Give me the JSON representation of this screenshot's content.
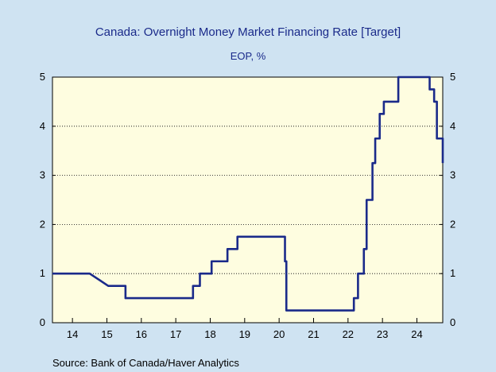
{
  "chart_data": {
    "type": "line",
    "title": "Canada: Overnight Money Market Financing Rate [Target]",
    "subtitle": "EOP, %",
    "source": "Source:  Bank of Canada/Haver Analytics",
    "xlabel": "",
    "ylabel": "",
    "xlim": [
      2013.42,
      2024.75
    ],
    "ylim": [
      0,
      5
    ],
    "y_ticks": [
      0,
      1,
      2,
      3,
      4,
      5
    ],
    "x_tick_labels": [
      "14",
      "15",
      "16",
      "17",
      "18",
      "19",
      "20",
      "21",
      "22",
      "23",
      "24"
    ],
    "x_tick_positions": [
      2014,
      2015,
      2016,
      2017,
      2018,
      2019,
      2020,
      2021,
      2022,
      2023,
      2024
    ],
    "grid": true,
    "line_color": "#1a2a8a",
    "plot_background": "#fefde0",
    "series": [
      {
        "x": [
          2013.42,
          2014.5,
          2015.04,
          2015.04,
          2015.54,
          2015.54,
          2017.5,
          2017.5,
          2017.7,
          2017.7,
          2018.04,
          2018.04,
          2018.5,
          2018.5,
          2018.79,
          2018.79,
          2020.17,
          2020.17,
          2020.21,
          2020.21,
          2022.17,
          2022.17,
          2022.29,
          2022.29,
          2022.46,
          2022.46,
          2022.54,
          2022.54,
          2022.71,
          2022.71,
          2022.79,
          2022.79,
          2022.92,
          2022.92,
          2023.04,
          2023.04,
          2023.46,
          2023.46,
          2024.37,
          2024.37,
          2024.5,
          2024.5,
          2024.58,
          2024.58,
          2024.75,
          2024.75
        ],
        "y": [
          1.0,
          1.0,
          0.75,
          0.75,
          0.75,
          0.5,
          0.5,
          0.75,
          0.75,
          1.0,
          1.0,
          1.25,
          1.25,
          1.5,
          1.5,
          1.75,
          1.75,
          1.25,
          1.25,
          0.25,
          0.25,
          0.5,
          0.5,
          1.0,
          1.0,
          1.5,
          1.5,
          2.5,
          2.5,
          3.25,
          3.25,
          3.75,
          3.75,
          4.25,
          4.25,
          4.5,
          4.5,
          5.0,
          5.0,
          4.75,
          4.75,
          4.5,
          4.5,
          3.75,
          3.75,
          3.25
        ]
      }
    ]
  }
}
